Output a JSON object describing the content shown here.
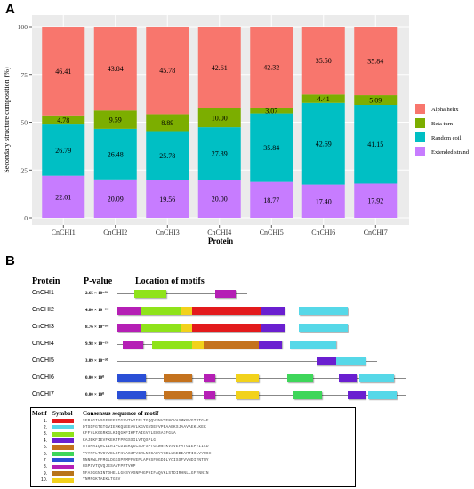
{
  "panel_a": {
    "letter": "A"
  },
  "panel_b": {
    "letter": "B"
  },
  "chart_data": {
    "type": "bar",
    "stacked": true,
    "xlabel": "Protein",
    "ylabel": "Secondary structure composition (%)",
    "yticks": [
      "0",
      "25",
      "50",
      "75",
      "100"
    ],
    "ylim": [
      0,
      100
    ],
    "categories": [
      "CnCHI1",
      "CnCHI2",
      "CnCHI3",
      "CnCHI4",
      "CnCHI5",
      "CnCHI6",
      "CnCHI7"
    ],
    "legend_position": "right",
    "series": [
      {
        "name": "Extended strand",
        "color": "#c77cff",
        "values": [
          22.01,
          20.09,
          19.56,
          20.0,
          18.77,
          17.4,
          17.92
        ]
      },
      {
        "name": "Random coil",
        "color": "#00bfc4",
        "values": [
          26.79,
          26.48,
          25.78,
          27.39,
          35.84,
          42.69,
          41.15
        ]
      },
      {
        "name": "Beta turn",
        "color": "#7cae00",
        "values": [
          4.78,
          9.59,
          8.89,
          10.0,
          3.07,
          4.41,
          5.09
        ]
      },
      {
        "name": "Alpha helix",
        "color": "#f8766d",
        "values": [
          46.41,
          43.84,
          45.78,
          42.61,
          42.32,
          35.5,
          35.84
        ]
      }
    ],
    "legend_order": [
      "Alpha helix",
      "Beta turn",
      "Random coil",
      "Extended strand"
    ]
  },
  "motif_panel": {
    "header_protein": "Protein",
    "header_pvalue": "P-value",
    "header_location": "Location of motifs",
    "rows": [
      {
        "protein": "CnCHI1",
        "pvalue": "2.65 × 10⁻³⁹",
        "motifs": [
          {
            "m": 3,
            "s": 0.06,
            "e": 0.17
          },
          {
            "m": 8,
            "s": 0.34,
            "e": 0.41
          }
        ]
      },
      {
        "protein": "CnCHI2",
        "pvalue": "4.80 × 10⁻¹⁶⁸",
        "motifs": [
          {
            "m": 8,
            "s": 0.0,
            "e": 0.08
          },
          {
            "m": 3,
            "s": 0.08,
            "e": 0.22
          },
          {
            "m": 10,
            "s": 0.22,
            "e": 0.26
          },
          {
            "m": 1,
            "s": 0.26,
            "e": 0.5
          },
          {
            "m": 4,
            "s": 0.5,
            "e": 0.58
          },
          {
            "m": 2,
            "s": 0.63,
            "e": 0.8
          }
        ]
      },
      {
        "protein": "CnCHI3",
        "pvalue": "8.76 × 10⁻¹⁶⁶",
        "motifs": [
          {
            "m": 8,
            "s": 0.0,
            "e": 0.08
          },
          {
            "m": 3,
            "s": 0.08,
            "e": 0.22
          },
          {
            "m": 10,
            "s": 0.22,
            "e": 0.26
          },
          {
            "m": 1,
            "s": 0.26,
            "e": 0.5
          },
          {
            "m": 4,
            "s": 0.5,
            "e": 0.58
          },
          {
            "m": 2,
            "s": 0.63,
            "e": 0.8
          }
        ]
      },
      {
        "protein": "CnCHI4",
        "pvalue": "9.98 × 10⁻¹⁵⁶",
        "motifs": [
          {
            "m": 8,
            "s": 0.02,
            "e": 0.09
          },
          {
            "m": 3,
            "s": 0.12,
            "e": 0.26
          },
          {
            "m": 10,
            "s": 0.26,
            "e": 0.3
          },
          {
            "m": 5,
            "s": 0.3,
            "e": 0.49
          },
          {
            "m": 4,
            "s": 0.49,
            "e": 0.57
          },
          {
            "m": 2,
            "s": 0.6,
            "e": 0.76
          }
        ]
      },
      {
        "protein": "CnCHI5",
        "pvalue": "3.09 × 10⁻²⁰",
        "motifs": [
          {
            "m": 4,
            "s": 0.69,
            "e": 0.76
          },
          {
            "m": 2,
            "s": 0.76,
            "e": 0.86
          }
        ]
      },
      {
        "protein": "CnCHI6",
        "pvalue": "0.00 × 10⁰",
        "motifs": [
          {
            "m": 7,
            "s": 0.0,
            "e": 0.1
          },
          {
            "m": 5,
            "s": 0.16,
            "e": 0.26
          },
          {
            "m": 8,
            "s": 0.3,
            "e": 0.34
          },
          {
            "m": 10,
            "s": 0.41,
            "e": 0.49
          },
          {
            "m": 6,
            "s": 0.59,
            "e": 0.68
          },
          {
            "m": 4,
            "s": 0.77,
            "e": 0.83
          },
          {
            "m": 2,
            "s": 0.84,
            "e": 0.96
          }
        ]
      },
      {
        "protein": "CnCHI7",
        "pvalue": "0.00 × 10⁰",
        "motifs": [
          {
            "m": 7,
            "s": 0.0,
            "e": 0.1
          },
          {
            "m": 5,
            "s": 0.16,
            "e": 0.26
          },
          {
            "m": 8,
            "s": 0.3,
            "e": 0.34
          },
          {
            "m": 10,
            "s": 0.41,
            "e": 0.49
          },
          {
            "m": 6,
            "s": 0.61,
            "e": 0.71
          },
          {
            "m": 4,
            "s": 0.8,
            "e": 0.86
          },
          {
            "m": 2,
            "s": 0.87,
            "e": 0.97
          }
        ]
      }
    ],
    "motif_colors": {
      "1": "#e31a1c",
      "2": "#56d8e8",
      "3": "#8fe31a",
      "4": "#6a1fd0",
      "5": "#c4721e",
      "6": "#3ed65a",
      "7": "#2a4fd6",
      "8": "#b51fb5",
      "9": "#b8741a",
      "10": "#f2d21b"
    }
  },
  "motif_table": {
    "header_motif": "Motif",
    "header_symbol": "Symbol",
    "header_sequence": "Consensus sequence of motif",
    "rows": [
      {
        "num": "1.",
        "color": "#e31a1c",
        "sequence": "SFPAGIVSGFSFESTGSVTWIIFLTGQQVSNVTENCVAYMKRVGTSTGAE"
      },
      {
        "num": "2.",
        "color": "#56d8e8",
        "sequence": "DTSDFGTGTGVIEMKQLEEAVLKGVGVDEFVPEAAEKSJAAVAEKLKEK"
      },
      {
        "num": "3.",
        "color": "#8fe31a",
        "sequence": "KFFYLKGGRKGLKIQGKFIKFTAIGVYLEDSAIFGLA"
      },
      {
        "num": "4.",
        "color": "#6a1fd0",
        "sequence": "KAJEKFIEVFKEKTFPPGSSILVTQSPLG"
      },
      {
        "num": "5.",
        "color": "#c4721e",
        "sequence": "NTSMRIQRCIIRIPCDIEKQGCSDFSPTGLWNTKVSVEFATGIEPYIILD"
      },
      {
        "num": "6.",
        "color": "#3ed65a",
        "sequence": "YYYNFLTVCYVELDFKYAS3FVGRLNRCADYYKDLLKEDIAMTIKLVYRCH"
      },
      {
        "num": "7.",
        "color": "#2a4fd6",
        "sequence": "MNNNWLFFMGLDGGSPFMPFVEPLAPHSFDGDDLYQISSFVVNDIYNTNY"
      },
      {
        "num": "8.",
        "color": "#b51fb5",
        "sequence": "HSPSVTQVQJESAVFPFTVKP"
      },
      {
        "num": "9.",
        "color": "#b8741a",
        "sequence": "NFASGGNINTDHELLGHSYASNPHGPHIFAQVKLSTDIRHNLLGFYNNIN"
      },
      {
        "num": "10.",
        "color": "#f2d21b",
        "sequence": "YNMRGKTAEKLTGSV"
      }
    ]
  }
}
